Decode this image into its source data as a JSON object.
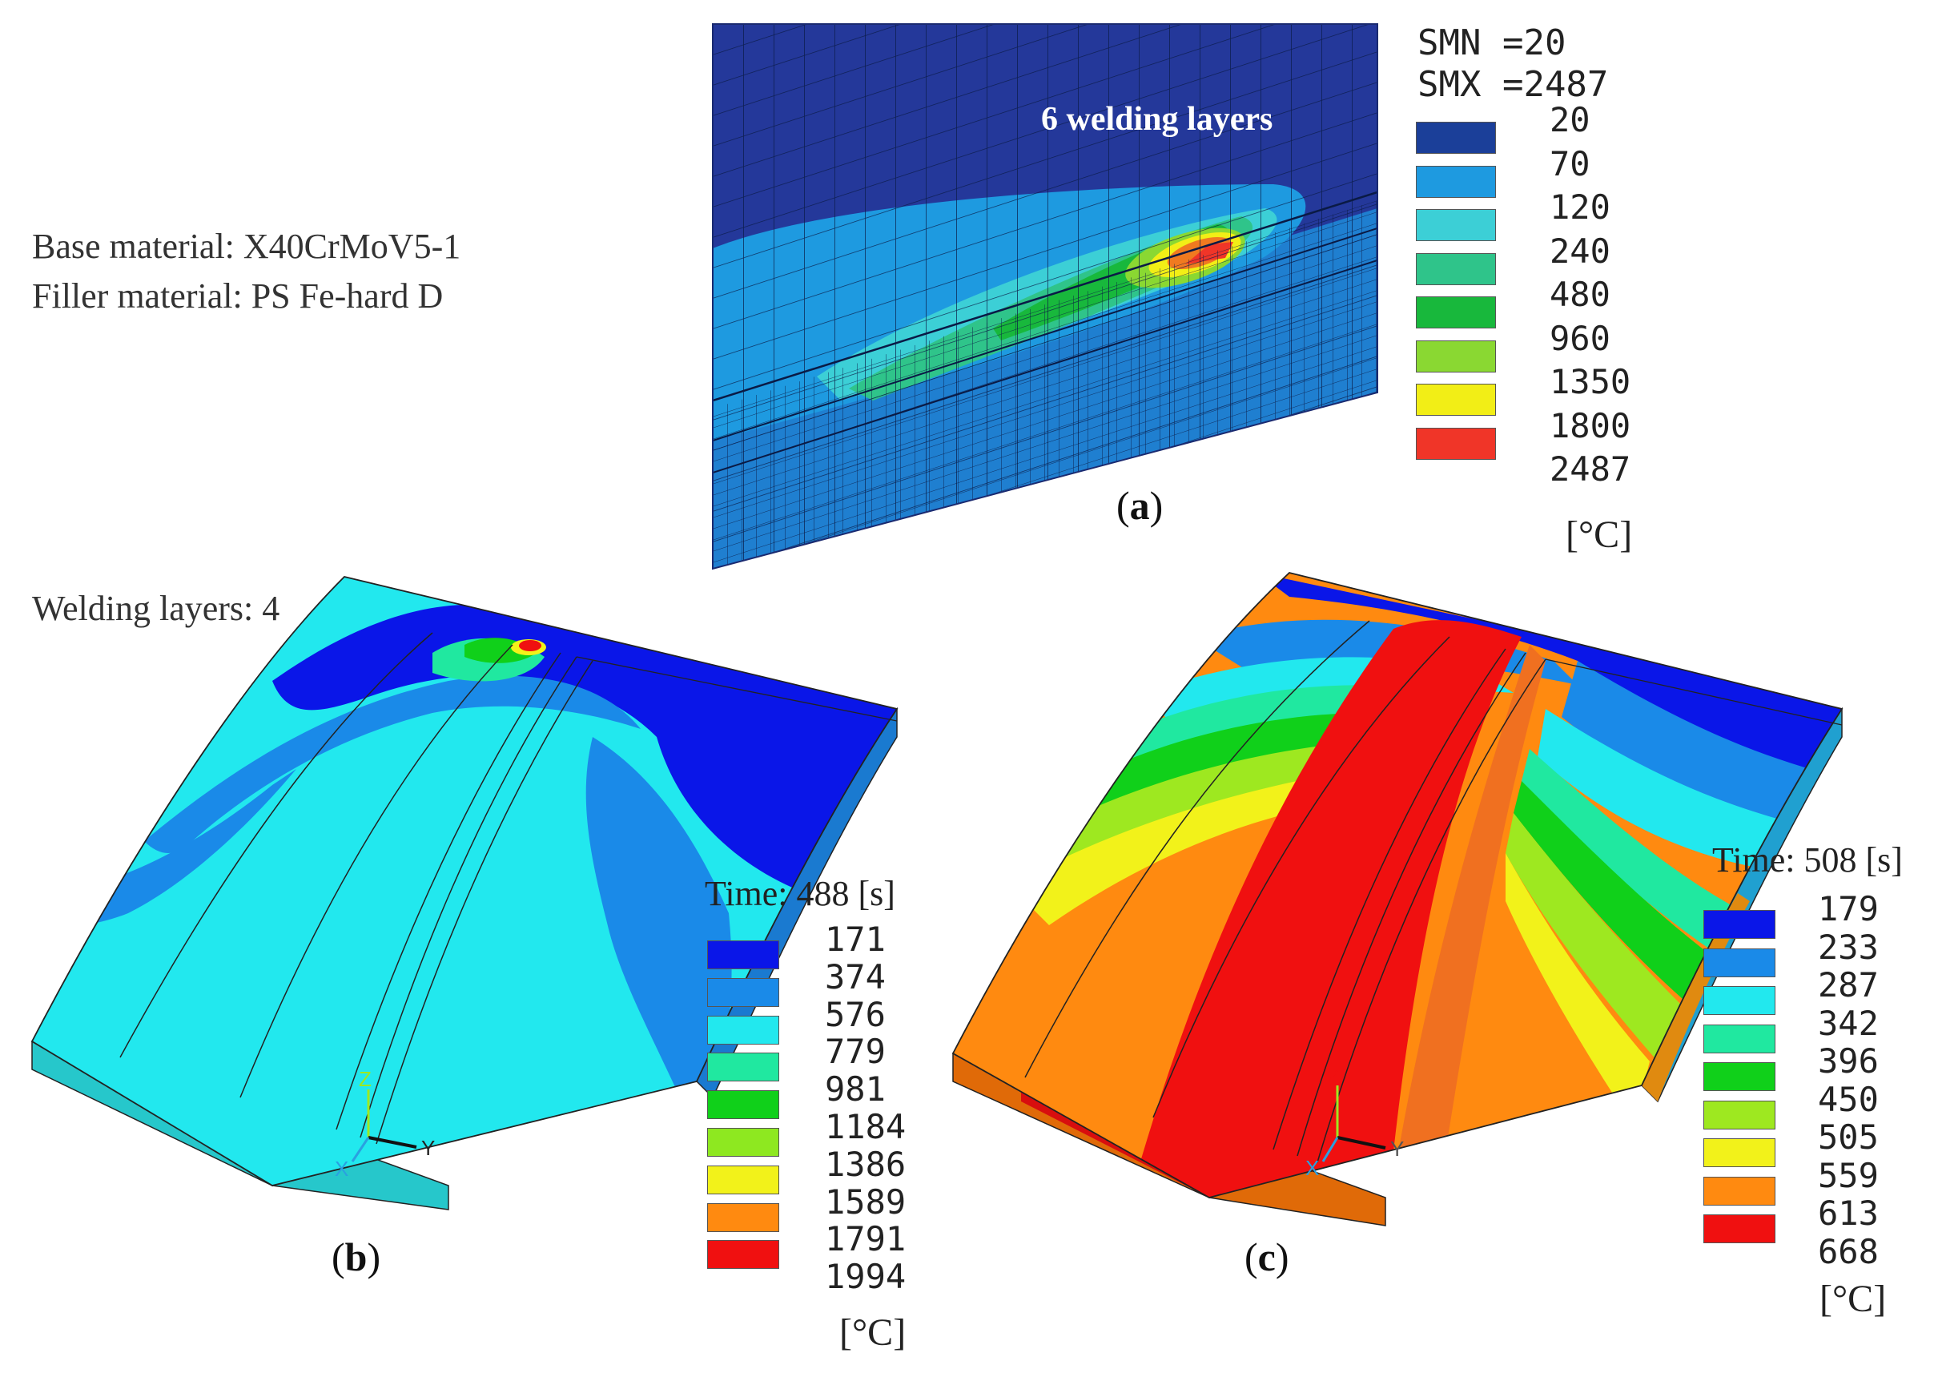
{
  "notes": {
    "base_material": "Base material: X40CrMoV5-1",
    "filler_material": "Filler material: PS Fe-hard D",
    "welding_layers": "Welding layers:  4"
  },
  "panel_a": {
    "caption_letter": "a",
    "inset_label": "6 welding layers",
    "smn_line": "SMN =20",
    "smx_line": "SMX =2487",
    "levels": [
      "20",
      "70",
      "120",
      "240",
      "480",
      "960",
      "1350",
      "1800",
      "2487"
    ],
    "colors": [
      "#1b3f99",
      "#1e9ae0",
      "#3ccfd6",
      "#2fc48a",
      "#18b83c",
      "#8ad832",
      "#f2ee16",
      "#f03528"
    ],
    "unit": "[°C]"
  },
  "panel_b": {
    "caption_letter": "b",
    "time_label": "Time: 488 [s]",
    "levels": [
      "171",
      "374",
      "576",
      "779",
      "981",
      "1184",
      "1386",
      "1589",
      "1791",
      "1994"
    ],
    "colors": [
      "#0a16e8",
      "#1a8ae8",
      "#22e8ee",
      "#20e8a0",
      "#10d01a",
      "#8ee820",
      "#f2f21a",
      "#ff8a10",
      "#f01010"
    ],
    "unit": "[°C]",
    "axis_labels": [
      "Z",
      "Y",
      "X"
    ]
  },
  "panel_c": {
    "caption_letter": "c",
    "time_label": "Time: 508 [s]",
    "levels": [
      "179",
      "233",
      "287",
      "342",
      "396",
      "450",
      "505",
      "559",
      "613",
      "668"
    ],
    "colors": [
      "#0a16e8",
      "#1a8ae8",
      "#22e8ee",
      "#20e8a0",
      "#10d01a",
      "#9ee820",
      "#f2f21a",
      "#ff8a10",
      "#f01010"
    ],
    "unit": "[°C]",
    "axis_labels": [
      "Z",
      "Y",
      "X"
    ]
  }
}
